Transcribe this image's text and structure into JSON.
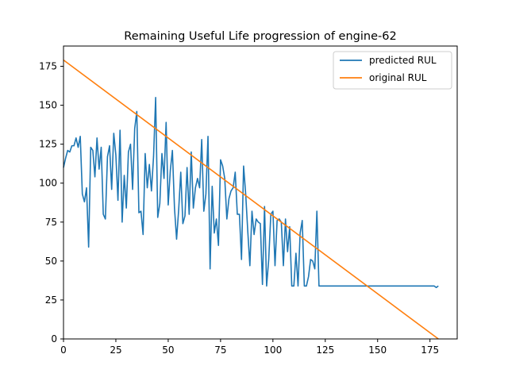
{
  "chart_data": {
    "type": "line",
    "title": "Remaining Useful Life progression of engine-62",
    "xlabel": "",
    "ylabel": "",
    "xlim": [
      0,
      188
    ],
    "ylim": [
      0,
      188
    ],
    "xticks": [
      0,
      25,
      50,
      75,
      100,
      125,
      150,
      175
    ],
    "yticks": [
      0,
      25,
      50,
      75,
      100,
      125,
      150,
      175
    ],
    "legend_position": "upper-right",
    "grid": false,
    "series": [
      {
        "name": "predicted RUL",
        "color": "#1f77b4",
        "points": [
          [
            0,
            110
          ],
          [
            1,
            116
          ],
          [
            2,
            121
          ],
          [
            3,
            120
          ],
          [
            4,
            124
          ],
          [
            5,
            124
          ],
          [
            6,
            129
          ],
          [
            7,
            123
          ],
          [
            8,
            130
          ],
          [
            9,
            93
          ],
          [
            10,
            88
          ],
          [
            11,
            97
          ],
          [
            12,
            59
          ],
          [
            13,
            123
          ],
          [
            14,
            121
          ],
          [
            15,
            104
          ],
          [
            16,
            129
          ],
          [
            17,
            109
          ],
          [
            18,
            123
          ],
          [
            19,
            80
          ],
          [
            20,
            77
          ],
          [
            21,
            117
          ],
          [
            22,
            124
          ],
          [
            23,
            96
          ],
          [
            24,
            132
          ],
          [
            25,
            118
          ],
          [
            26,
            89
          ],
          [
            27,
            134
          ],
          [
            28,
            75
          ],
          [
            29,
            105
          ],
          [
            30,
            84
          ],
          [
            31,
            120
          ],
          [
            32,
            125
          ],
          [
            33,
            96
          ],
          [
            34,
            135
          ],
          [
            35,
            146
          ],
          [
            36,
            81
          ],
          [
            37,
            82
          ],
          [
            38,
            67
          ],
          [
            39,
            119
          ],
          [
            40,
            97
          ],
          [
            41,
            112
          ],
          [
            42,
            95
          ],
          [
            43,
            117
          ],
          [
            44,
            155
          ],
          [
            45,
            78
          ],
          [
            46,
            87
          ],
          [
            47,
            119
          ],
          [
            48,
            103
          ],
          [
            49,
            139
          ],
          [
            50,
            86
          ],
          [
            51,
            108
          ],
          [
            52,
            121
          ],
          [
            53,
            84
          ],
          [
            54,
            64
          ],
          [
            55,
            83
          ],
          [
            56,
            107
          ],
          [
            57,
            74
          ],
          [
            58,
            79
          ],
          [
            59,
            110
          ],
          [
            60,
            80
          ],
          [
            61,
            120
          ],
          [
            62,
            84
          ],
          [
            63,
            97
          ],
          [
            64,
            103
          ],
          [
            65,
            97
          ],
          [
            66,
            128
          ],
          [
            67,
            82
          ],
          [
            68,
            93
          ],
          [
            69,
            130
          ],
          [
            70,
            45
          ],
          [
            71,
            98
          ],
          [
            72,
            68
          ],
          [
            73,
            77
          ],
          [
            74,
            60
          ],
          [
            75,
            115
          ],
          [
            76,
            111
          ],
          [
            77,
            103
          ],
          [
            78,
            77
          ],
          [
            79,
            90
          ],
          [
            80,
            95
          ],
          [
            81,
            97
          ],
          [
            82,
            107
          ],
          [
            83,
            80
          ],
          [
            84,
            80
          ],
          [
            85,
            51
          ],
          [
            86,
            111
          ],
          [
            87,
            93
          ],
          [
            88,
            69
          ],
          [
            89,
            47
          ],
          [
            90,
            82
          ],
          [
            91,
            67
          ],
          [
            92,
            77
          ],
          [
            93,
            75
          ],
          [
            94,
            74
          ],
          [
            95,
            35
          ],
          [
            96,
            85
          ],
          [
            97,
            34
          ],
          [
            98,
            51
          ],
          [
            99,
            80
          ],
          [
            100,
            82
          ],
          [
            101,
            47
          ],
          [
            102,
            76
          ],
          [
            103,
            77
          ],
          [
            104,
            75
          ],
          [
            105,
            47
          ],
          [
            106,
            77
          ],
          [
            107,
            56
          ],
          [
            108,
            72
          ],
          [
            109,
            34
          ],
          [
            110,
            34
          ],
          [
            111,
            55
          ],
          [
            112,
            34
          ],
          [
            113,
            68
          ],
          [
            114,
            76
          ],
          [
            115,
            34
          ],
          [
            116,
            34
          ],
          [
            117,
            40
          ],
          [
            118,
            51
          ],
          [
            119,
            50
          ],
          [
            120,
            45
          ],
          [
            121,
            82
          ],
          [
            122,
            34
          ],
          [
            123,
            34
          ],
          [
            130,
            34
          ],
          [
            140,
            34
          ],
          [
            150,
            34
          ],
          [
            160,
            34
          ],
          [
            170,
            34
          ],
          [
            177,
            34
          ],
          [
            178,
            33
          ],
          [
            179,
            34
          ]
        ]
      },
      {
        "name": "original RUL",
        "color": "#ff7f0e",
        "points": [
          [
            0,
            179
          ],
          [
            179,
            0
          ]
        ]
      }
    ]
  }
}
